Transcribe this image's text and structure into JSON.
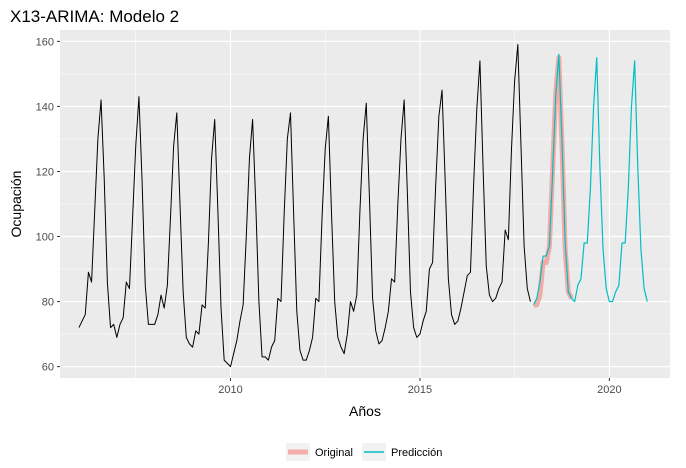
{
  "chart_data": {
    "type": "line",
    "title": "X13-ARIMA: Modelo 2",
    "xlabel": "Años",
    "ylabel": "Ocupación",
    "xlim": [
      2005.5,
      2021.6
    ],
    "ylim": [
      56.5,
      163.5
    ],
    "x_ticks": [
      2010,
      2015,
      2020
    ],
    "x_tick_labels": [
      "2010",
      "2015",
      "2020"
    ],
    "y_ticks": [
      60,
      80,
      100,
      120,
      140,
      160
    ],
    "y_tick_labels": [
      "60",
      "80",
      "100",
      "120",
      "140",
      "160"
    ],
    "grid": true,
    "legend_position": "bottom",
    "historical": {
      "start": 2006.0,
      "step": 0.0833333,
      "color": "#000000",
      "values": [
        72,
        74,
        76,
        89,
        86,
        108,
        130,
        142,
        118,
        86,
        72,
        73,
        69,
        73,
        75,
        86,
        84,
        106,
        128,
        143,
        117,
        85,
        73,
        73,
        73,
        76,
        82,
        78,
        85,
        106,
        128,
        138,
        110,
        83,
        69,
        67,
        66,
        71,
        70,
        79,
        78,
        98,
        124,
        136,
        108,
        78,
        62,
        61,
        60,
        64,
        68,
        74,
        79,
        100,
        124,
        136,
        110,
        80,
        63,
        63,
        62,
        66,
        68,
        81,
        80,
        107,
        130,
        138,
        107,
        77,
        65,
        62,
        62,
        65,
        69,
        81,
        80,
        106,
        127,
        137,
        107,
        80,
        69,
        66,
        64,
        70,
        80,
        77,
        82,
        108,
        130,
        141,
        112,
        81,
        71,
        67,
        68,
        72,
        77,
        87,
        86,
        110,
        130,
        142,
        114,
        83,
        72,
        69,
        70,
        74,
        77,
        90,
        92,
        116,
        137,
        145,
        117,
        87,
        76,
        73,
        74,
        78,
        83,
        88,
        89,
        116,
        139,
        154,
        121,
        91,
        82,
        80,
        81,
        84,
        86,
        102,
        99,
        127,
        148,
        159,
        128,
        97,
        84,
        80
      ]
    },
    "series": [
      {
        "name": "Original",
        "color": "#f8766d",
        "start": 2018.0,
        "step": 0.0833333,
        "values": [
          79,
          79,
          82,
          92,
          92,
          97,
          120,
          144,
          155,
          128,
          96,
          83,
          81
        ]
      },
      {
        "name": "Predicción",
        "color": "#00bfc4",
        "start": 2018.0,
        "step": 0.0833333,
        "values": [
          79,
          81,
          86,
          94,
          94,
          97,
          119,
          143,
          156,
          129,
          98,
          83,
          81,
          80,
          85,
          87,
          98,
          98,
          115,
          140,
          155,
          121,
          96,
          84,
          80,
          80,
          83,
          85,
          98,
          98,
          115,
          140,
          154,
          121,
          96,
          84,
          80
        ]
      }
    ]
  }
}
